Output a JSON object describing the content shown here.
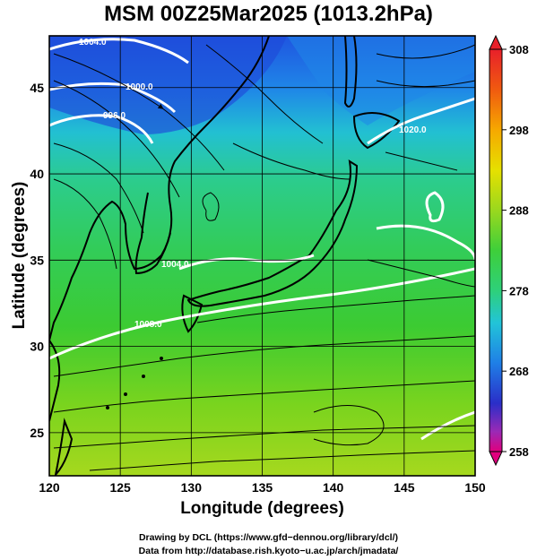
{
  "title": "MSM 00Z25Mar2025 (1013.2hPa)",
  "axes": {
    "xlabel": "Longitude (degrees)",
    "ylabel": "Latitude  (degrees)",
    "x_ticks": [
      "120",
      "125",
      "130",
      "135",
      "140",
      "145",
      "150"
    ],
    "y_ticks": [
      "25",
      "30",
      "35",
      "40",
      "45"
    ],
    "x_range": [
      120,
      150
    ],
    "y_range": [
      22.5,
      48
    ]
  },
  "colorbar": {
    "labels": [
      "308",
      "298",
      "288",
      "278",
      "268",
      "258"
    ],
    "range": [
      258,
      308
    ],
    "colors": [
      "#e0007e",
      "#9a2ab6",
      "#2a2ec8",
      "#1f7fe6",
      "#22c4d8",
      "#2ed07a",
      "#3ecf3a",
      "#9ad81e",
      "#e6e000",
      "#f6a800",
      "#f05a10",
      "#e8202a"
    ]
  },
  "contour_labels": [
    "1004.0",
    "1000.0",
    "996.0",
    "1004.0",
    "1008.0",
    "1020.0"
  ],
  "credits": {
    "line1": "Drawing by DCL (https://www.gfd−dennou.org/library/dcl/)",
    "line2": "Data from http://database.rish.kyoto−u.ac.jp/arch/jmadata/"
  },
  "colors": {
    "land": "#000000",
    "contour": "#ffffff",
    "stream": "#000000",
    "grid": "#000000"
  }
}
